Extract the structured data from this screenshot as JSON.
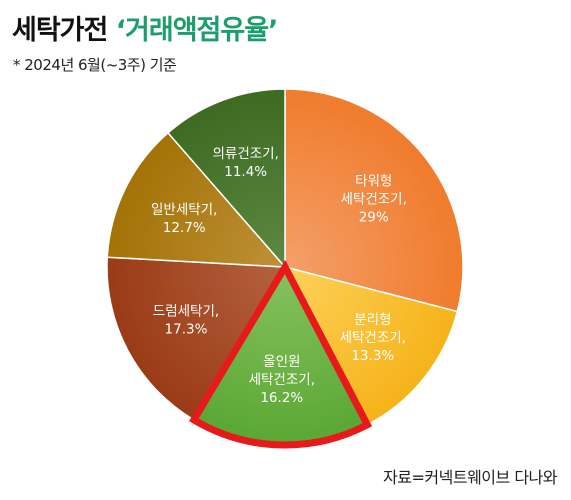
{
  "header": {
    "title_main": "세탁가전",
    "title_highlight": "‘거래액점유율’",
    "subtitle": "* 2024년 6월(~3주) 기준"
  },
  "footer": {
    "source": "자료=커넥트웨이브 다나와"
  },
  "colors": {
    "title_highlight": "#1a9e6e",
    "highlight_outline": "#e8191a"
  },
  "chart_data": {
    "type": "pie",
    "start_angle_deg": 0,
    "direction": "clockwise",
    "highlighted": "올인원 세탁건조기",
    "slices": [
      {
        "label": [
          "타워형",
          "세탁건조기,",
          "29%"
        ],
        "name": "타워형 세탁건조기",
        "value": 29,
        "color": "#f07b2c",
        "color_light": "#f4a06a"
      },
      {
        "label": [
          "분리형",
          "세탁건조기,",
          "13.3%"
        ],
        "name": "분리형 세탁건조기",
        "value": 13.3,
        "color": "#f6b31a",
        "color_light": "#fdd15a"
      },
      {
        "label": [
          "올인원",
          "세탁건조기,",
          "16.2%"
        ],
        "name": "올인원 세탁건조기",
        "value": 16.2,
        "color": "#5aa734",
        "color_light": "#86c25f"
      },
      {
        "label": [
          "드럼세탁기,",
          "17.3%"
        ],
        "name": "드럼세탁기",
        "value": 17.3,
        "color": "#9a3b16",
        "color_light": "#b4623e"
      },
      {
        "label": [
          "일반세탁기,",
          "12.7%"
        ],
        "name": "일반세탁기",
        "value": 12.7,
        "color": "#a37307",
        "color_light": "#bf9037"
      },
      {
        "label": [
          "의류건조기,",
          "11.4%"
        ],
        "name": "의류건조기",
        "value": 11.4,
        "color": "#3d6b22",
        "color_light": "#5d8842"
      }
    ]
  }
}
